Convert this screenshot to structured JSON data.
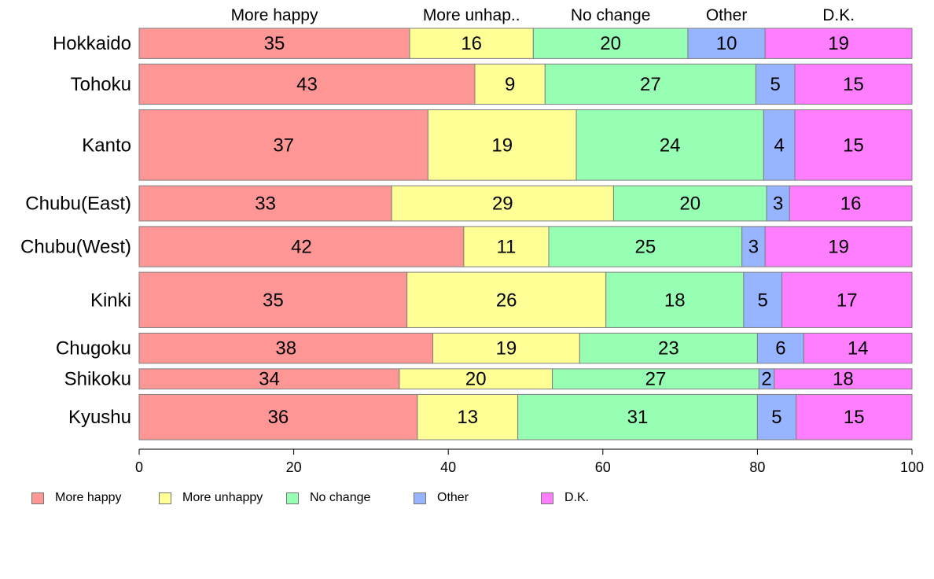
{
  "chart_data": {
    "type": "bar",
    "orientation": "horizontal",
    "stacked": true,
    "categories": [
      "Hokkaido",
      "Tohoku",
      "Kanto",
      "Chubu(East)",
      "Chubu(West)",
      "Kinki",
      "Chugoku",
      "Shikoku",
      "Kyushu"
    ],
    "column_labels": [
      "More happy",
      "More unhap..",
      "No change",
      "Other",
      "D.K."
    ],
    "series": [
      {
        "name": "More happy",
        "color": "#FF9696",
        "values": [
          35,
          43,
          37,
          33,
          42,
          35,
          38,
          34,
          36
        ]
      },
      {
        "name": "More unhappy",
        "color": "#FFFF96",
        "values": [
          16,
          9,
          19,
          29,
          11,
          26,
          19,
          20,
          13
        ]
      },
      {
        "name": "No change",
        "color": "#96FFB4",
        "values": [
          20,
          27,
          24,
          20,
          25,
          18,
          23,
          27,
          31
        ]
      },
      {
        "name": "Other",
        "color": "#96B4FF",
        "values": [
          10,
          5,
          4,
          3,
          3,
          5,
          6,
          2,
          5
        ]
      },
      {
        "name": "D.K.",
        "color": "#FF7DFF",
        "values": [
          19,
          15,
          15,
          16,
          19,
          17,
          14,
          18,
          15
        ]
      }
    ],
    "bar_weights": [
      3,
      4,
      7,
      3.5,
      4,
      5.5,
      3,
      2,
      4.5
    ],
    "xlim": [
      0,
      100
    ],
    "xticks": [
      0,
      20,
      40,
      60,
      80,
      100
    ],
    "legend_position": "bottom",
    "grid": false
  }
}
